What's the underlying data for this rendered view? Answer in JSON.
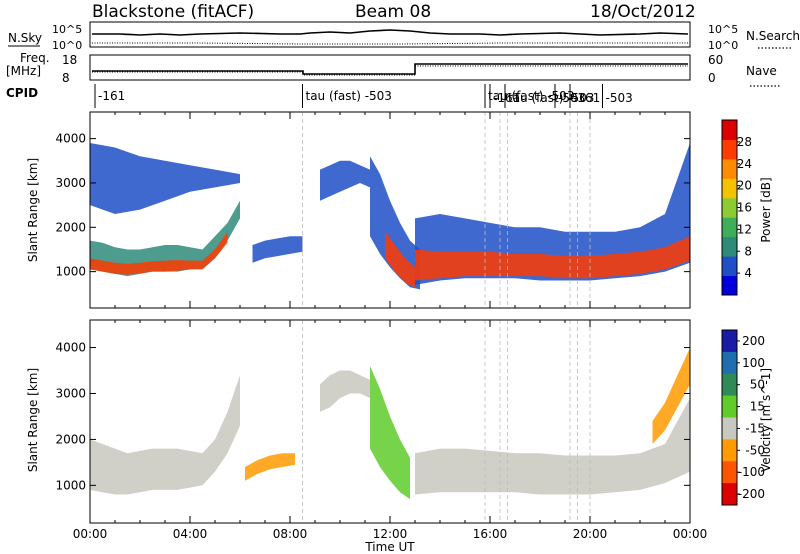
{
  "header": {
    "station": "Blackstone (fitACF)",
    "beam": "Beam 08",
    "date": "18/Oct/2012"
  },
  "top_panels": {
    "nsky_label": "N.Sky",
    "nsearch_label": "N.Search",
    "nsky_ticks": [
      "10^5",
      "10^0"
    ],
    "nsearch_ticks": [
      "10^5",
      "10^0"
    ],
    "freq_label_line1": "Freq.",
    "freq_label_line2": "[MHz]",
    "freq_ticks": [
      "18",
      "8"
    ],
    "nave_label": "Nave",
    "nave_ticks": [
      "60",
      "0"
    ],
    "cpid_label": "CPID",
    "cpid_annotations": [
      {
        "time": 0.2,
        "text": "-161"
      },
      {
        "time": 8.5,
        "text": "tau (fast) -503"
      },
      {
        "time": 15.8,
        "text": "tau (fast) -503"
      },
      {
        "time": 16.0,
        "text": "-161"
      },
      {
        "time": 16.6,
        "text": "tau (fast) -503"
      },
      {
        "time": 18.6,
        "text": "-503"
      },
      {
        "time": 19.2,
        "text": "-161"
      },
      {
        "time": 20.5,
        "text": "-503"
      }
    ]
  },
  "chart_data": [
    {
      "type": "heatmap",
      "panel": "power",
      "xlabel": "Time UT",
      "ylabel": "Slant Range [km]",
      "x_ticks": [
        "00:00",
        "04:00",
        "08:00",
        "12:00",
        "16:00",
        "20:00",
        "00:00"
      ],
      "xlim": [
        0,
        24
      ],
      "y_ticks": [
        1000,
        2000,
        3000,
        4000
      ],
      "ylim": [
        180,
        4600
      ],
      "colorbar": {
        "label": "Power [dB]",
        "ticks": [
          4,
          8,
          12,
          16,
          20,
          24,
          28
        ],
        "range": [
          0,
          32
        ],
        "colors": [
          "#0000dd",
          "#1f4fc8",
          "#2e8b7a",
          "#3fae5a",
          "#8ccc33",
          "#f5c200",
          "#ff8c00",
          "#ff3b00",
          "#dd0000"
        ]
      },
      "bands": [
        {
          "x": [
            0.0,
            0.5,
            1.0,
            1.5,
            2.0,
            2.5,
            3.0,
            3.5,
            4.0,
            4.5,
            5.0,
            5.5,
            6.0
          ],
          "low": [
            1050,
            1000,
            950,
            900,
            950,
            1000,
            1000,
            1000,
            1050,
            1050,
            1300,
            1700,
            2200
          ],
          "high": [
            1700,
            1650,
            1550,
            1500,
            1500,
            1550,
            1600,
            1600,
            1550,
            1500,
            1800,
            2100,
            2600
          ],
          "color": "#2e8b7a"
        },
        {
          "x": [
            0.0,
            0.5,
            1.0,
            1.5,
            2.0,
            2.5,
            3.0,
            3.5,
            4.0,
            4.5,
            5.0,
            5.5
          ],
          "low": [
            1050,
            1000,
            950,
            930,
            960,
            1000,
            1000,
            1020,
            1050,
            1060,
            1300,
            1650
          ],
          "high": [
            1300,
            1250,
            1200,
            1180,
            1200,
            1230,
            1250,
            1260,
            1250,
            1250,
            1500,
            1900
          ],
          "color": "#ff3b00"
        },
        {
          "x": [
            0.0,
            1.0,
            2.0,
            3.0,
            4.0,
            5.0,
            6.0
          ],
          "low": [
            2500,
            2300,
            2400,
            2600,
            2800,
            2900,
            3000
          ],
          "high": [
            3900,
            3800,
            3600,
            3500,
            3400,
            3300,
            3200
          ],
          "color": "#1f4fc8"
        },
        {
          "x": [
            9.2,
            9.6,
            10.0,
            10.4,
            10.8,
            11.2
          ],
          "low": [
            2600,
            2700,
            2800,
            2900,
            3000,
            2900
          ],
          "high": [
            3300,
            3400,
            3500,
            3500,
            3400,
            3300
          ],
          "color": "#1f4fc8"
        },
        {
          "x": [
            11.2,
            11.6,
            12.0,
            12.4,
            12.8,
            13.2
          ],
          "low": [
            1800,
            1400,
            1100,
            850,
            650,
            600
          ],
          "high": [
            3600,
            3200,
            2600,
            2100,
            1700,
            1500
          ],
          "color": "#1f4fc8"
        },
        {
          "x": [
            11.8,
            12.2,
            12.6,
            13.0
          ],
          "low": [
            1300,
            1000,
            750,
            650
          ],
          "high": [
            1900,
            1600,
            1300,
            1100
          ],
          "color": "#ff3b00"
        },
        {
          "x": [
            13.0,
            14.0,
            15.0,
            16.0,
            17.0,
            18.0,
            19.0,
            20.0,
            21.0,
            22.0,
            23.0,
            24.0
          ],
          "low": [
            700,
            800,
            850,
            850,
            850,
            800,
            800,
            800,
            850,
            900,
            1000,
            1200
          ],
          "high": [
            2200,
            2300,
            2200,
            2100,
            2000,
            2000,
            1900,
            1900,
            1900,
            2000,
            2300,
            3900
          ],
          "color": "#1f4fc8"
        },
        {
          "x": [
            13.0,
            14.0,
            15.0,
            16.0,
            17.0,
            18.0,
            19.0,
            20.0,
            21.0,
            22.0,
            23.0,
            24.0
          ],
          "low": [
            800,
            850,
            900,
            900,
            900,
            900,
            850,
            850,
            900,
            950,
            1050,
            1250
          ],
          "high": [
            1500,
            1450,
            1450,
            1450,
            1400,
            1400,
            1350,
            1350,
            1400,
            1450,
            1550,
            1800
          ],
          "color": "#ff3b00"
        },
        {
          "x": [
            6.5,
            7.0,
            7.5,
            8.0,
            8.5
          ],
          "low": [
            1200,
            1300,
            1350,
            1400,
            1450
          ],
          "high": [
            1600,
            1700,
            1750,
            1800,
            1800
          ],
          "color": "#1f4fc8"
        }
      ]
    },
    {
      "type": "heatmap",
      "panel": "velocity",
      "xlabel": "Time UT",
      "ylabel": "Slant Range [km]",
      "x_ticks": [
        "00:00",
        "04:00",
        "08:00",
        "12:00",
        "16:00",
        "20:00",
        "00:00"
      ],
      "xlim": [
        0,
        24
      ],
      "y_ticks": [
        1000,
        2000,
        3000,
        4000
      ],
      "ylim": [
        180,
        4600
      ],
      "colorbar": {
        "label": "Velocity [m s^-1]",
        "ticks": [
          200,
          100,
          50,
          15,
          -15,
          -50,
          -100,
          -200
        ],
        "colors": [
          "#1a1aa6",
          "#1f6fb0",
          "#2e8b57",
          "#5fcc2a",
          "#c8c8c0",
          "#ff9a00",
          "#ff5500",
          "#dd0000"
        ]
      },
      "bands": [
        {
          "x": [
            0.0,
            0.5,
            1.0,
            1.5,
            2.0,
            2.5,
            3.0,
            3.5,
            4.0,
            4.5,
            5.0,
            5.5,
            6.0
          ],
          "low": [
            900,
            850,
            800,
            800,
            850,
            900,
            900,
            900,
            950,
            1000,
            1300,
            1700,
            2300
          ],
          "high": [
            2000,
            1900,
            1800,
            1700,
            1750,
            1800,
            1800,
            1800,
            1750,
            1700,
            2000,
            2600,
            3400
          ],
          "color": "#c8c8c0"
        },
        {
          "x": [
            6.2,
            6.7,
            7.2,
            7.7,
            8.2
          ],
          "low": [
            1100,
            1250,
            1350,
            1400,
            1450
          ],
          "high": [
            1400,
            1550,
            1650,
            1700,
            1700
          ],
          "color": "#ff9a00"
        },
        {
          "x": [
            9.2,
            9.6,
            10.0,
            10.4,
            10.8,
            11.2
          ],
          "low": [
            2600,
            2700,
            2900,
            3000,
            3000,
            2900
          ],
          "high": [
            3200,
            3400,
            3500,
            3500,
            3400,
            3300
          ],
          "color": "#c8c8c0"
        },
        {
          "x": [
            11.2,
            11.6,
            12.0,
            12.4,
            12.8
          ],
          "low": [
            1800,
            1400,
            1100,
            850,
            700
          ],
          "high": [
            3600,
            3100,
            2500,
            2000,
            1600
          ],
          "color": "#5fcc2a"
        },
        {
          "x": [
            13.0,
            14.0,
            15.0,
            16.0,
            17.0,
            18.0,
            19.0,
            20.0,
            21.0,
            22.0,
            23.0,
            24.0
          ],
          "low": [
            800,
            850,
            850,
            850,
            850,
            800,
            800,
            800,
            850,
            900,
            1050,
            1300
          ],
          "high": [
            1700,
            1800,
            1800,
            1750,
            1700,
            1700,
            1650,
            1650,
            1650,
            1700,
            1900,
            2900
          ],
          "color": "#c8c8c0"
        },
        {
          "x": [
            22.5,
            23.0,
            23.5,
            24.0
          ],
          "low": [
            1900,
            2200,
            2700,
            3200
          ],
          "high": [
            2400,
            2800,
            3400,
            4000
          ],
          "color": "#ff9a00"
        }
      ]
    }
  ]
}
